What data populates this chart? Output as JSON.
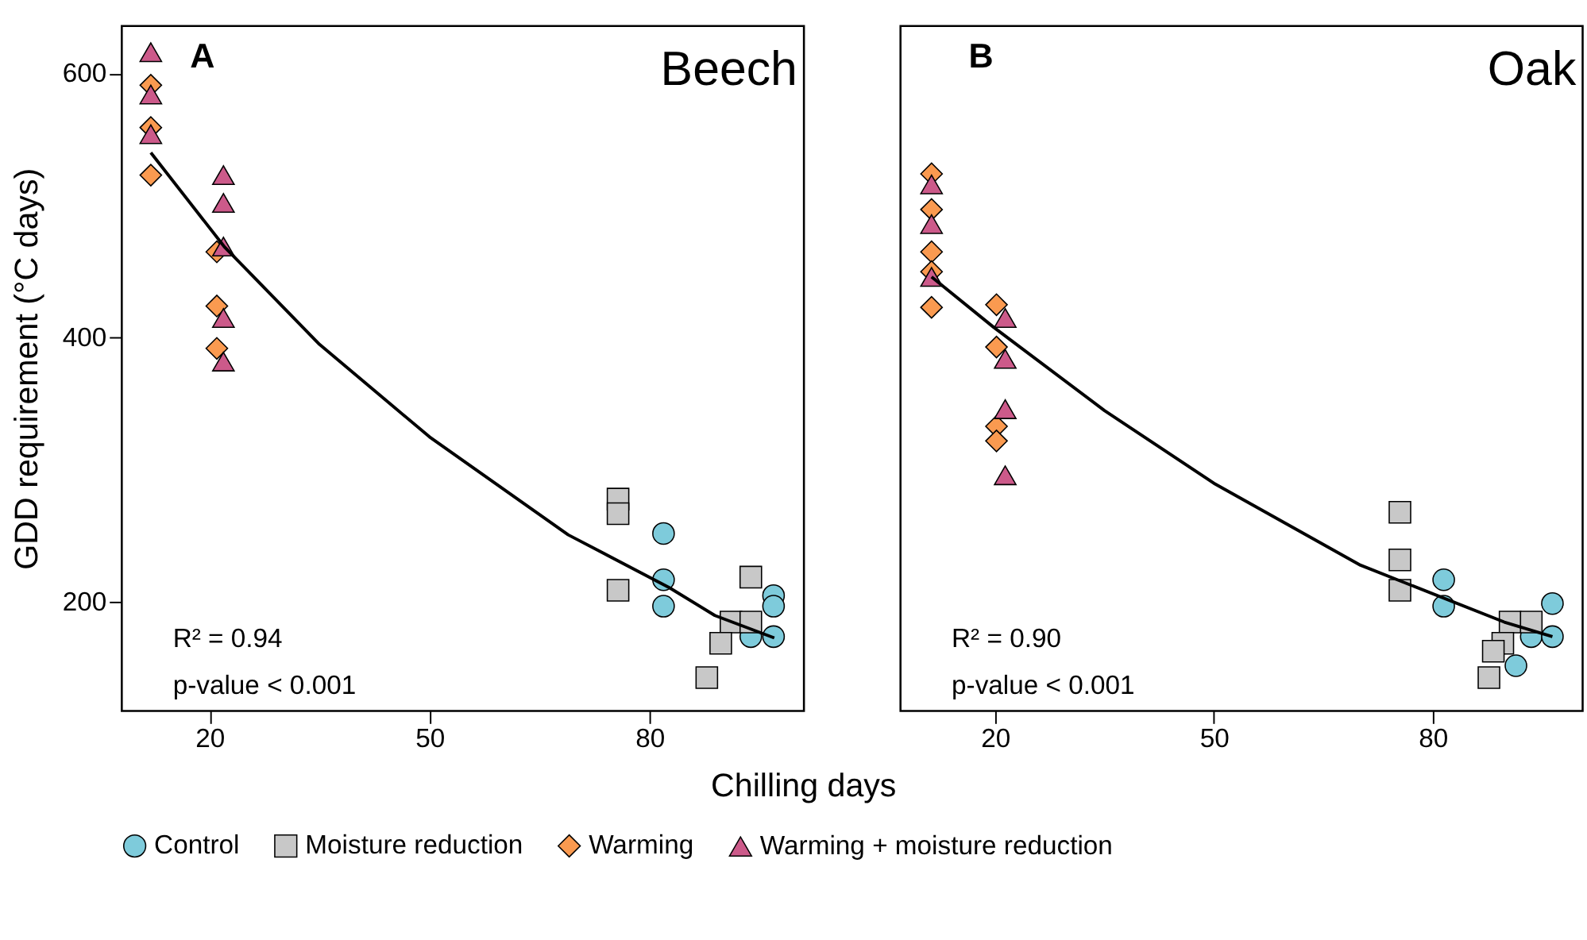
{
  "chart_data": [
    {
      "type": "scatter",
      "title": "Beech",
      "xlabel": "Chilling days",
      "ylabel": "GDD requirement (°C days)",
      "xlim": [
        8,
        101
      ],
      "xticks": [
        20,
        50,
        80
      ],
      "ylim": [
        118,
        636
      ],
      "yticks": [
        200,
        400,
        600
      ],
      "grid": false,
      "legend": "bottom",
      "annotations": [
        "A",
        "R² = 0.94",
        "p-value < 0.001"
      ],
      "series": [
        {
          "name": "Control",
          "color": "#7ecbdb",
          "marker": "circle",
          "x": [
            81.9,
            81.9,
            81.9,
            96.9,
            96.9,
            93.8,
            96.9
          ],
          "values": [
            252,
            217,
            197,
            205,
            197,
            174,
            174
          ]
        },
        {
          "name": "Moisture reduction",
          "color": "#c8c8c8",
          "marker": "square",
          "x": [
            75.7,
            75.7,
            75.7,
            93.8,
            91.1,
            93.8,
            89.7,
            87.8
          ],
          "values": [
            278,
            267,
            209,
            219,
            185,
            185,
            169,
            143
          ]
        },
        {
          "name": "Warming",
          "color": "#fa9a50",
          "marker": "diamond",
          "x": [
            12,
            12,
            12,
            21,
            21,
            21
          ],
          "values": [
            591,
            559,
            523,
            465,
            424,
            392
          ]
        },
        {
          "name": "Warming + moisture reduction",
          "color": "#cc5a8a",
          "marker": "triangle",
          "x": [
            12,
            12,
            12,
            21.9,
            21.9,
            21.9,
            21.9,
            21.9
          ],
          "values": [
            616,
            584,
            554,
            523,
            502,
            469,
            415,
            382
          ]
        },
        {
          "type": "line",
          "color": "#000000",
          "marker": "none",
          "x": [
            12,
            22,
            35,
            50,
            68.9,
            82.7,
            88.9,
            97
          ],
          "values": [
            540,
            469,
            395,
            325,
            251,
            211,
            190,
            173
          ]
        }
      ]
    },
    {
      "type": "scatter",
      "title": "Oak",
      "xlim": [
        7,
        100.5
      ],
      "xticks": [
        20,
        50,
        80
      ],
      "ylim": [
        118,
        636
      ],
      "yticks": [
        200,
        400,
        600
      ],
      "grid": false,
      "legend": "bottom",
      "tick_labels": "x",
      "annotations": [
        "B",
        "R² = 0.90",
        "p-value < 0.001"
      ],
      "series": [
        {
          "name": "Control",
          "color": "#7ecbdb",
          "marker": "circle",
          "x": [
            81.5,
            81.5,
            91.4,
            93.5,
            96.4,
            96.4
          ],
          "values": [
            217,
            197,
            152,
            174,
            199,
            174
          ]
        },
        {
          "name": "Moisture reduction",
          "color": "#c8c8c8",
          "marker": "square",
          "x": [
            75.5,
            75.5,
            75.5,
            90.6,
            93.5,
            89.6,
            88.3,
            87.7
          ],
          "values": [
            268,
            232,
            209,
            185,
            185,
            169,
            163,
            143
          ]
        },
        {
          "name": "Warming",
          "color": "#fa9a50",
          "marker": "diamond",
          "x": [
            11.3,
            11.3,
            11.3,
            11.3,
            11.3,
            20.2,
            20.2,
            20.2,
            20.2
          ],
          "values": [
            524,
            497,
            465,
            450,
            423,
            425,
            393,
            333,
            322
          ]
        },
        {
          "name": "Warming + moisture reduction",
          "color": "#cc5a8a",
          "marker": "triangle",
          "x": [
            11.3,
            11.3,
            11.3,
            21.4,
            21.4,
            21.4,
            21.4
          ],
          "values": [
            516,
            486,
            446,
            415,
            384,
            346,
            296
          ]
        },
        {
          "type": "line",
          "color": "#000000",
          "marker": "none",
          "x": [
            11.3,
            19.8,
            35,
            50,
            70.1,
            89.8,
            96.4
          ],
          "values": [
            446,
            408,
            345,
            290,
            228,
            185,
            174
          ]
        }
      ]
    }
  ]
}
